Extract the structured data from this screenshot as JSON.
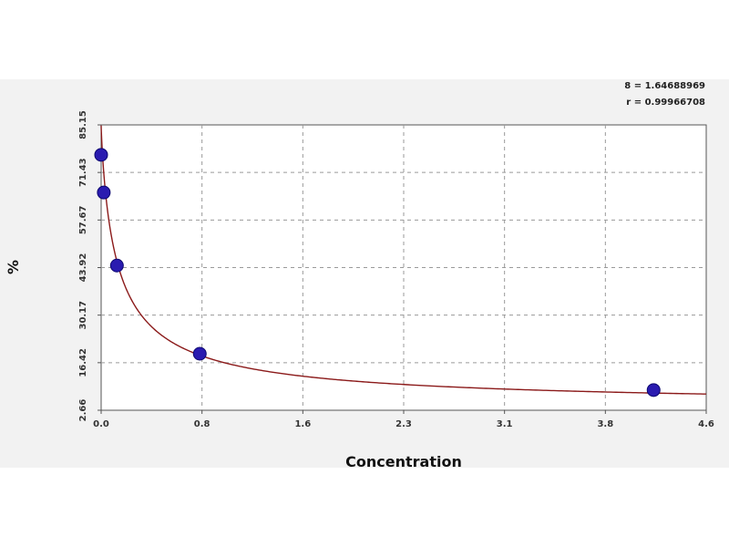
{
  "stats": {
    "line1": "8 = 1.64688969",
    "line2": "r = 0.99966708"
  },
  "chart_data": {
    "type": "scatter",
    "title": "",
    "xlabel": "Concentration",
    "ylabel": "%",
    "xlim": [
      0.0,
      4.6
    ],
    "ylim": [
      2.66,
      85.15
    ],
    "x_ticks": [
      "0.0",
      "0.8",
      "1.6",
      "2.3",
      "3.1",
      "3.8",
      "4.6"
    ],
    "y_ticks": [
      "2.66",
      "16.42",
      "30.17",
      "43.92",
      "57.67",
      "71.43",
      "85.15"
    ],
    "grid": true,
    "series": [
      {
        "type": "scatter",
        "color": "#2a1bb0",
        "points": [
          {
            "x": 0.0,
            "y": 76.5
          },
          {
            "x": 0.02,
            "y": 65.6
          },
          {
            "x": 0.12,
            "y": 44.5
          },
          {
            "x": 0.75,
            "y": 19.0
          },
          {
            "x": 4.2,
            "y": 8.5
          }
        ]
      },
      {
        "type": "line",
        "color": "#8b1a1a",
        "curve": {
          "a": 85.0,
          "b": 0.13,
          "c": 3.6,
          "p": 0.85
        }
      }
    ]
  }
}
